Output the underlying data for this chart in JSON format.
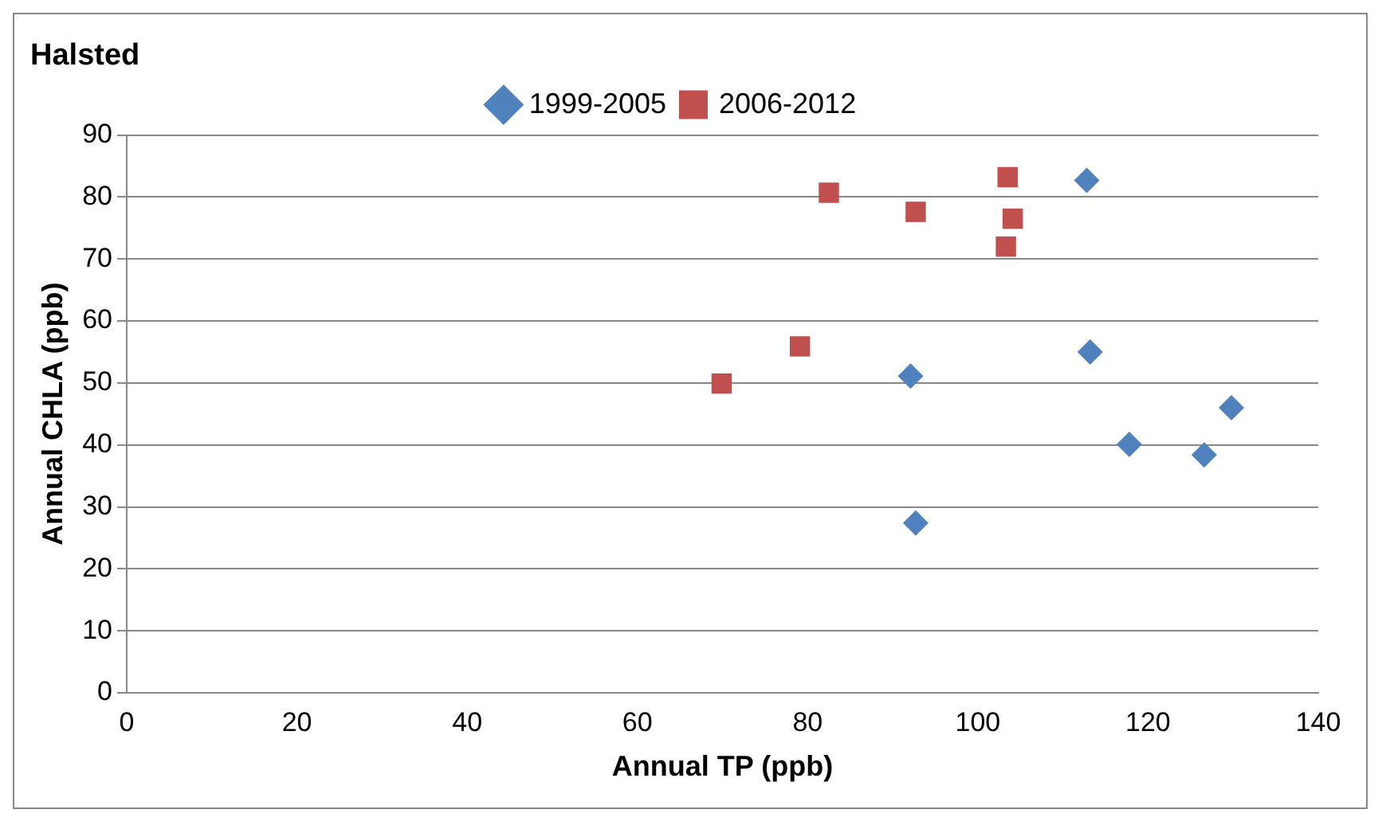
{
  "chart_data": {
    "type": "scatter",
    "title": "Halsted",
    "xlabel": "Annual TP (ppb)",
    "ylabel": "Annual CHLA (ppb)",
    "xlim": [
      0,
      140
    ],
    "xticks": [
      0,
      20,
      40,
      60,
      80,
      100,
      120,
      140
    ],
    "ylim": [
      0,
      90
    ],
    "yticks": [
      0,
      10,
      20,
      30,
      40,
      50,
      60,
      70,
      80,
      90
    ],
    "grid": "y",
    "legend": "top",
    "series": [
      {
        "name": "1999-2005",
        "color": "#4f81bd",
        "marker": "diamond",
        "x": [
          92.1,
          92.7,
          112.8,
          113.2,
          117.8,
          126.6,
          129.8
        ],
        "values": [
          51.1,
          27.4,
          82.7,
          55.0,
          40.1,
          38.4,
          46.0
        ]
      },
      {
        "name": "2006-2012",
        "color": "#c0504d",
        "marker": "square",
        "x": [
          69.9,
          79.1,
          82.5,
          92.7,
          103.5,
          103.3,
          104.1
        ],
        "values": [
          49.9,
          55.9,
          80.7,
          77.6,
          83.2,
          72.0,
          76.5
        ]
      }
    ]
  }
}
